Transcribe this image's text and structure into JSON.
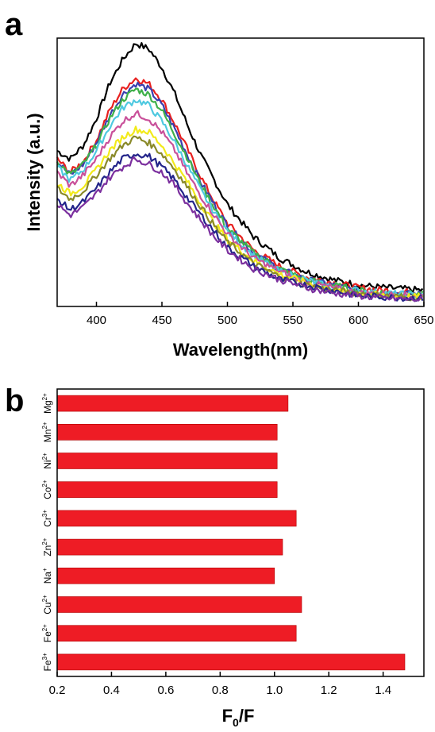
{
  "chart_data": [
    {
      "type": "line",
      "panel_label": "a",
      "title": "",
      "xlabel": "Wavelength(nm)",
      "ylabel": "Intensity (a.u.)",
      "xlim": [
        370,
        650
      ],
      "ylim": [
        0,
        1
      ],
      "xticks": [
        400,
        450,
        500,
        550,
        600,
        650
      ],
      "yticks": [],
      "grid": false,
      "legend": "none",
      "x": [
        370,
        380,
        390,
        400,
        410,
        420,
        430,
        440,
        450,
        460,
        470,
        480,
        490,
        500,
        520,
        540,
        560,
        580,
        600,
        620,
        650
      ],
      "series": [
        {
          "color": "#000000",
          "values": [
            0.58,
            0.55,
            0.6,
            0.7,
            0.83,
            0.92,
            0.98,
            0.96,
            0.89,
            0.79,
            0.67,
            0.56,
            0.47,
            0.38,
            0.26,
            0.18,
            0.13,
            0.1,
            0.08,
            0.07,
            0.06
          ]
        },
        {
          "color": "#e8201f",
          "values": [
            0.55,
            0.5,
            0.54,
            0.62,
            0.73,
            0.81,
            0.85,
            0.83,
            0.77,
            0.68,
            0.58,
            0.48,
            0.39,
            0.31,
            0.21,
            0.15,
            0.11,
            0.09,
            0.07,
            0.06,
            0.05
          ]
        },
        {
          "color": "#3a3fae",
          "values": [
            0.54,
            0.49,
            0.53,
            0.61,
            0.71,
            0.79,
            0.83,
            0.81,
            0.75,
            0.66,
            0.56,
            0.46,
            0.38,
            0.3,
            0.2,
            0.14,
            0.1,
            0.08,
            0.06,
            0.05,
            0.045
          ]
        },
        {
          "color": "#3fb04a",
          "values": [
            0.54,
            0.49,
            0.53,
            0.6,
            0.7,
            0.77,
            0.81,
            0.79,
            0.73,
            0.64,
            0.55,
            0.45,
            0.37,
            0.29,
            0.2,
            0.14,
            0.1,
            0.08,
            0.06,
            0.05,
            0.045
          ]
        },
        {
          "color": "#4fc9e0",
          "values": [
            0.52,
            0.47,
            0.51,
            0.58,
            0.67,
            0.74,
            0.77,
            0.75,
            0.69,
            0.61,
            0.52,
            0.43,
            0.35,
            0.28,
            0.19,
            0.13,
            0.1,
            0.07,
            0.06,
            0.05,
            0.04
          ]
        },
        {
          "color": "#c9509a",
          "values": [
            0.5,
            0.45,
            0.49,
            0.55,
            0.63,
            0.69,
            0.72,
            0.7,
            0.65,
            0.58,
            0.49,
            0.41,
            0.34,
            0.27,
            0.18,
            0.13,
            0.09,
            0.07,
            0.05,
            0.045,
            0.04
          ]
        },
        {
          "color": "#f2ea1a",
          "values": [
            0.46,
            0.42,
            0.45,
            0.51,
            0.58,
            0.63,
            0.66,
            0.65,
            0.6,
            0.53,
            0.46,
            0.38,
            0.31,
            0.25,
            0.17,
            0.12,
            0.09,
            0.06,
            0.05,
            0.04,
            0.035
          ]
        },
        {
          "color": "#8a8a2a",
          "values": [
            0.44,
            0.4,
            0.43,
            0.49,
            0.55,
            0.6,
            0.63,
            0.61,
            0.57,
            0.51,
            0.44,
            0.37,
            0.3,
            0.24,
            0.16,
            0.11,
            0.08,
            0.06,
            0.05,
            0.04,
            0.03
          ]
        },
        {
          "color": "#23248a",
          "values": [
            0.4,
            0.36,
            0.39,
            0.44,
            0.5,
            0.55,
            0.57,
            0.56,
            0.52,
            0.47,
            0.4,
            0.34,
            0.28,
            0.22,
            0.15,
            0.1,
            0.08,
            0.06,
            0.04,
            0.035,
            0.03
          ]
        },
        {
          "color": "#7b2f9e",
          "values": [
            0.38,
            0.34,
            0.37,
            0.42,
            0.48,
            0.52,
            0.55,
            0.53,
            0.5,
            0.45,
            0.38,
            0.32,
            0.26,
            0.21,
            0.14,
            0.1,
            0.07,
            0.05,
            0.04,
            0.03,
            0.025
          ]
        }
      ]
    },
    {
      "type": "bar",
      "orientation": "horizontal",
      "panel_label": "b",
      "title": "",
      "xlabel": "F",
      "xlabel_sub": "0",
      "xlabel_tail": "/F",
      "ylabel": "",
      "xlim": [
        0.2,
        1.55
      ],
      "xticks": [
        "0.2",
        "0.4",
        "0.6",
        "0.8",
        "1.0",
        "1.2",
        "1.4"
      ],
      "grid": false,
      "legend": "none",
      "bar_color": "#ee1c25",
      "categories": [
        {
          "base": "Fe",
          "sup": "3+"
        },
        {
          "base": "Fe",
          "sup": "2+"
        },
        {
          "base": "Cu",
          "sup": "2+"
        },
        {
          "base": "Na",
          "sup": "+"
        },
        {
          "base": "Zn",
          "sup": "2+"
        },
        {
          "base": "Cr",
          "sup": "3+"
        },
        {
          "base": "Co",
          "sup": "2+"
        },
        {
          "base": "Ni",
          "sup": "2+"
        },
        {
          "base": "Mn",
          "sup": "2+"
        },
        {
          "base": "Mg",
          "sup": "2+"
        }
      ],
      "values": [
        1.48,
        1.08,
        1.1,
        1.0,
        1.03,
        1.08,
        1.01,
        1.01,
        1.01,
        1.05
      ]
    }
  ]
}
